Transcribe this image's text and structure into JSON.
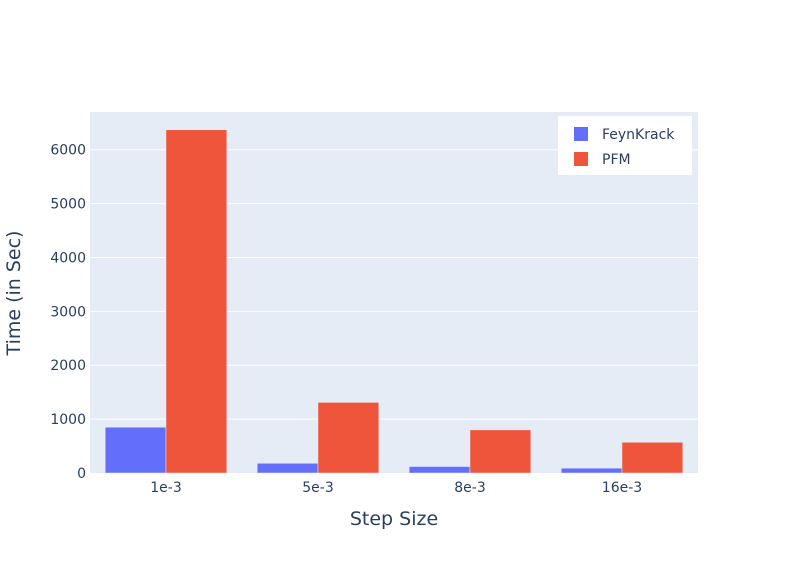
{
  "chart_data": {
    "type": "bar",
    "title": "",
    "xlabel": "Step Size",
    "ylabel": "Time (in Sec)",
    "categories": [
      "1e-3",
      "5e-3",
      "8e-3",
      "16e-3"
    ],
    "ylim": [
      0,
      6700
    ],
    "yticks": [
      0,
      1000,
      2000,
      3000,
      4000,
      5000,
      6000
    ],
    "grid": true,
    "legend_position": "top-right",
    "series": [
      {
        "name": "FeynKrack",
        "color": "#636efa",
        "values": [
          850,
          180,
          120,
          90
        ]
      },
      {
        "name": "PFM",
        "color": "#ef553b",
        "values": [
          6370,
          1310,
          800,
          570
        ]
      }
    ]
  }
}
